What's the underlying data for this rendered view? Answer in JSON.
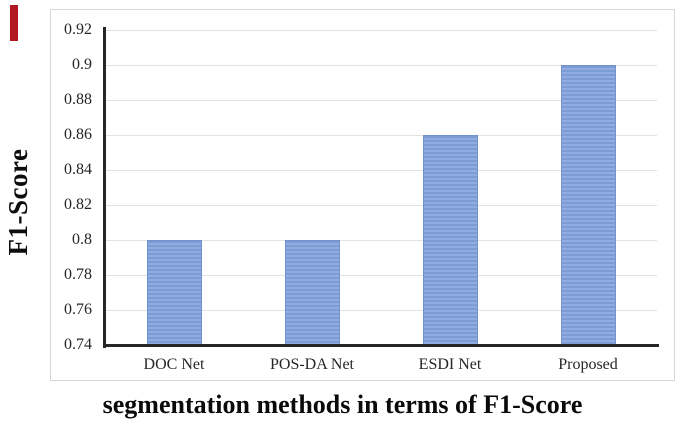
{
  "figure": {
    "annotation_mark_color": "#b0191f"
  },
  "chart_data": {
    "type": "bar",
    "title": "",
    "xlabel": "segmentation methods in terms of F1-Score",
    "ylabel": "F1-Score",
    "categories": [
      "DOC Net",
      "POS-DA Net",
      "ESDI Net",
      "Proposed"
    ],
    "values": [
      0.8,
      0.8,
      0.86,
      0.9
    ],
    "yticks": [
      "0.92",
      "0.9",
      "0.88",
      "0.86",
      "0.84",
      "0.82",
      "0.8",
      "0.78",
      "0.76",
      "0.74"
    ],
    "ylim": [
      0.74,
      0.92
    ],
    "grid": true,
    "legend": false,
    "colors": {
      "bar_fill": "#7d9cd6",
      "bar_stripe": "#91ace0",
      "bar_border": "#7093cf",
      "grid_color": "#e2e2e2",
      "axis_color": "#262626",
      "tick_text": "#262626"
    }
  }
}
